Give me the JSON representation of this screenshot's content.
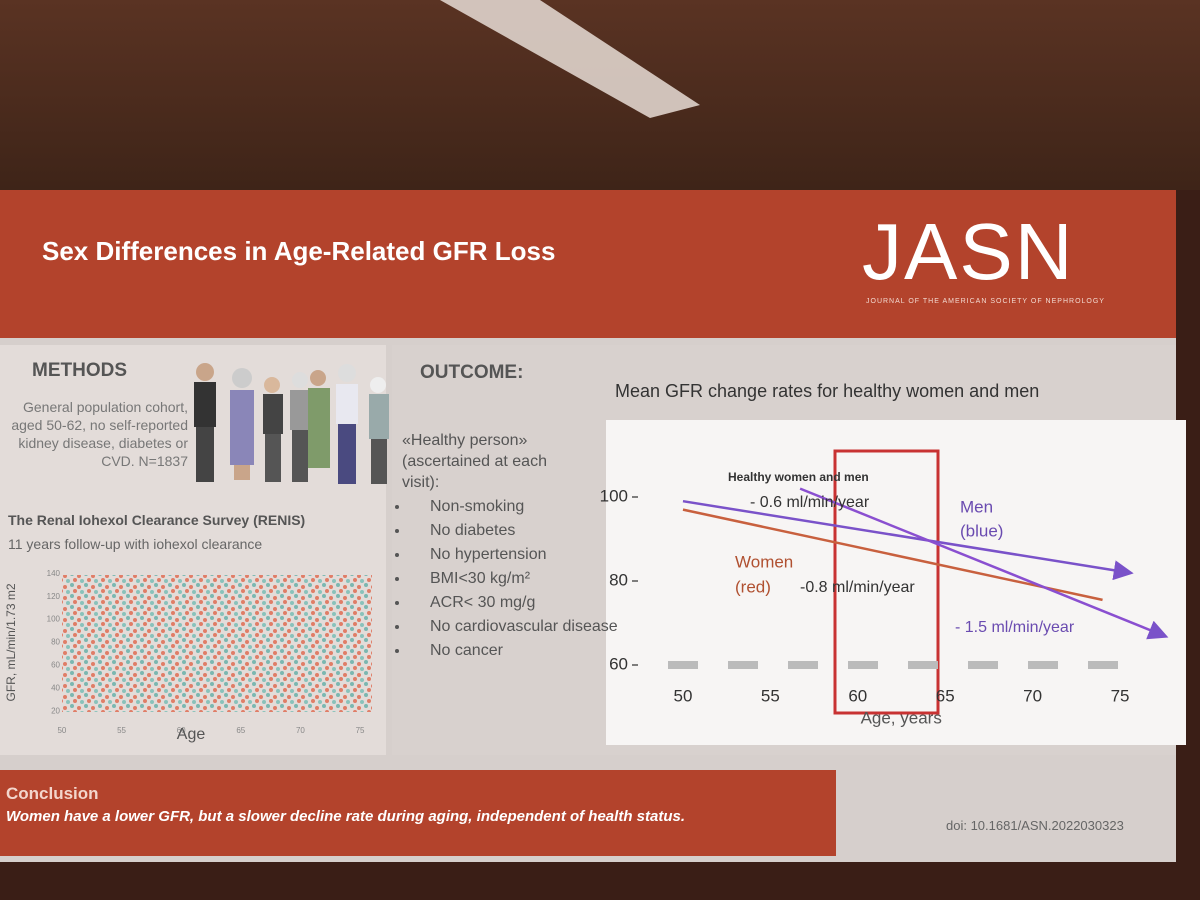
{
  "header": {
    "title": "Sex Differences in Age-Related GFR Loss",
    "logo": "JASN",
    "logo_subtitle": "JOURNAL OF THE AMERICAN SOCIETY OF NEPHROLOGY"
  },
  "methods": {
    "heading": "METHODS",
    "description": "General population cohort, aged 50-62, no self-reported kidney disease, diabetes or CVD. N=1837",
    "study": "The Renal Iohexol Clearance Survey (RENIS)",
    "followup": "11 years follow-up with iohexol clearance"
  },
  "outcome": {
    "heading": "OUTCOME:",
    "definition_title": "«Healthy person»",
    "definition_note": "(ascertained at each visit):",
    "criteria": [
      "Non-smoking",
      "No diabetes",
      "No hypertension",
      "BMI<30 kg/m²",
      "ACR< 30 mg/g",
      "No cardiovascular disease",
      "No cancer"
    ]
  },
  "chart_data": [
    {
      "type": "scatter",
      "xlabel": "Age",
      "ylabel": "GFR, mL/min/1.73 m2",
      "xlim": [
        49,
        76
      ],
      "ylim": [
        15,
        145
      ],
      "xticks": [
        50,
        55,
        60,
        65,
        70,
        75
      ],
      "yticks": [
        20,
        40,
        60,
        80,
        100,
        120,
        140
      ]
    },
    {
      "type": "line",
      "title": "Mean GFR change rates for healthy women and men",
      "xlabel": "Age, years",
      "xlim": [
        48,
        77
      ],
      "ylim": [
        55,
        105
      ],
      "xticks": [
        50,
        55,
        60,
        65,
        70,
        75
      ],
      "yticks": [
        60,
        80,
        100
      ],
      "series": [
        {
          "color": "#c8603e",
          "x": [
            50,
            74
          ],
          "values": [
            97,
            75.5
          ]
        },
        {
          "color": "#7a52c9",
          "x": [
            50,
            75.5
          ],
          "values": [
            99,
            82
          ]
        },
        {
          "color": "#8a4fd0",
          "x": [
            56.7,
            77.5
          ],
          "values": [
            102,
            67
          ]
        }
      ],
      "annotations": [
        "Healthy women and men",
        "- 0.6 ml/min/year",
        "Men",
        "(blue)",
        "Women",
        "(red)",
        "-0.8 ml/min/year",
        "- 1.5 ml/min/year"
      ]
    }
  ],
  "conclusion": {
    "heading": "Conclusion",
    "text": "Women have a lower GFR, but a slower decline rate during aging, independent of health status."
  },
  "doi": "doi: 10.1681/ASN.2022030323"
}
